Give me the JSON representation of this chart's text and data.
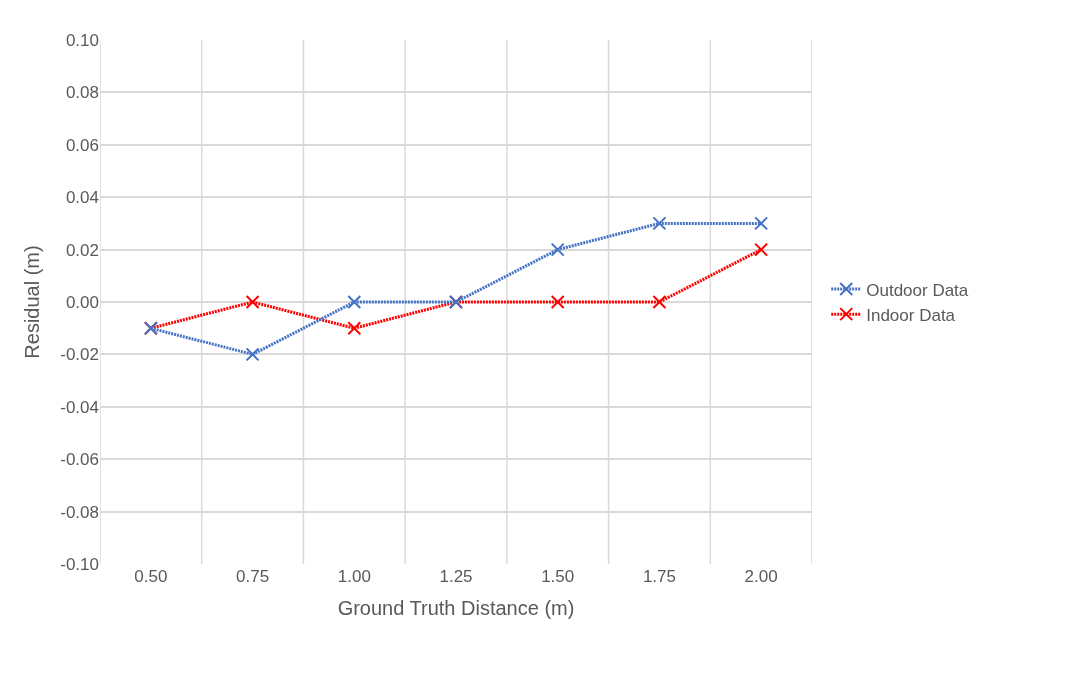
{
  "chart_data": {
    "type": "line",
    "xlabel": "Ground Truth Distance (m)",
    "ylabel": "Residual (m)",
    "categories": [
      "0.50",
      "0.75",
      "1.00",
      "1.25",
      "1.50",
      "1.75",
      "2.00"
    ],
    "series": [
      {
        "name": "Outdoor Data",
        "color": "#4472c4",
        "values": [
          -0.01,
          -0.02,
          0.0,
          0.0,
          0.02,
          0.03,
          0.03
        ]
      },
      {
        "name": "Indoor Data",
        "color": "#ff0000",
        "values": [
          -0.01,
          0.0,
          -0.01,
          0.0,
          0.0,
          0.0,
          0.02
        ]
      }
    ],
    "ylim": [
      -0.1,
      0.1
    ],
    "yticks": [
      {
        "value": -0.1,
        "label": "-0.10"
      },
      {
        "value": -0.08,
        "label": "-0.08"
      },
      {
        "value": -0.06,
        "label": "-0.06"
      },
      {
        "value": -0.04,
        "label": "-0.04"
      },
      {
        "value": -0.02,
        "label": "-0.02"
      },
      {
        "value": 0,
        "label": "0.00"
      },
      {
        "value": 0.02,
        "label": "0.02"
      },
      {
        "value": 0.04,
        "label": "0.04"
      },
      {
        "value": 0.06,
        "label": "0.06"
      },
      {
        "value": 0.08,
        "label": "0.08"
      },
      {
        "value": 0.1,
        "label": "0.10"
      }
    ],
    "grid": true,
    "legend": "right",
    "marker": "cross",
    "line_style": "dotted"
  }
}
